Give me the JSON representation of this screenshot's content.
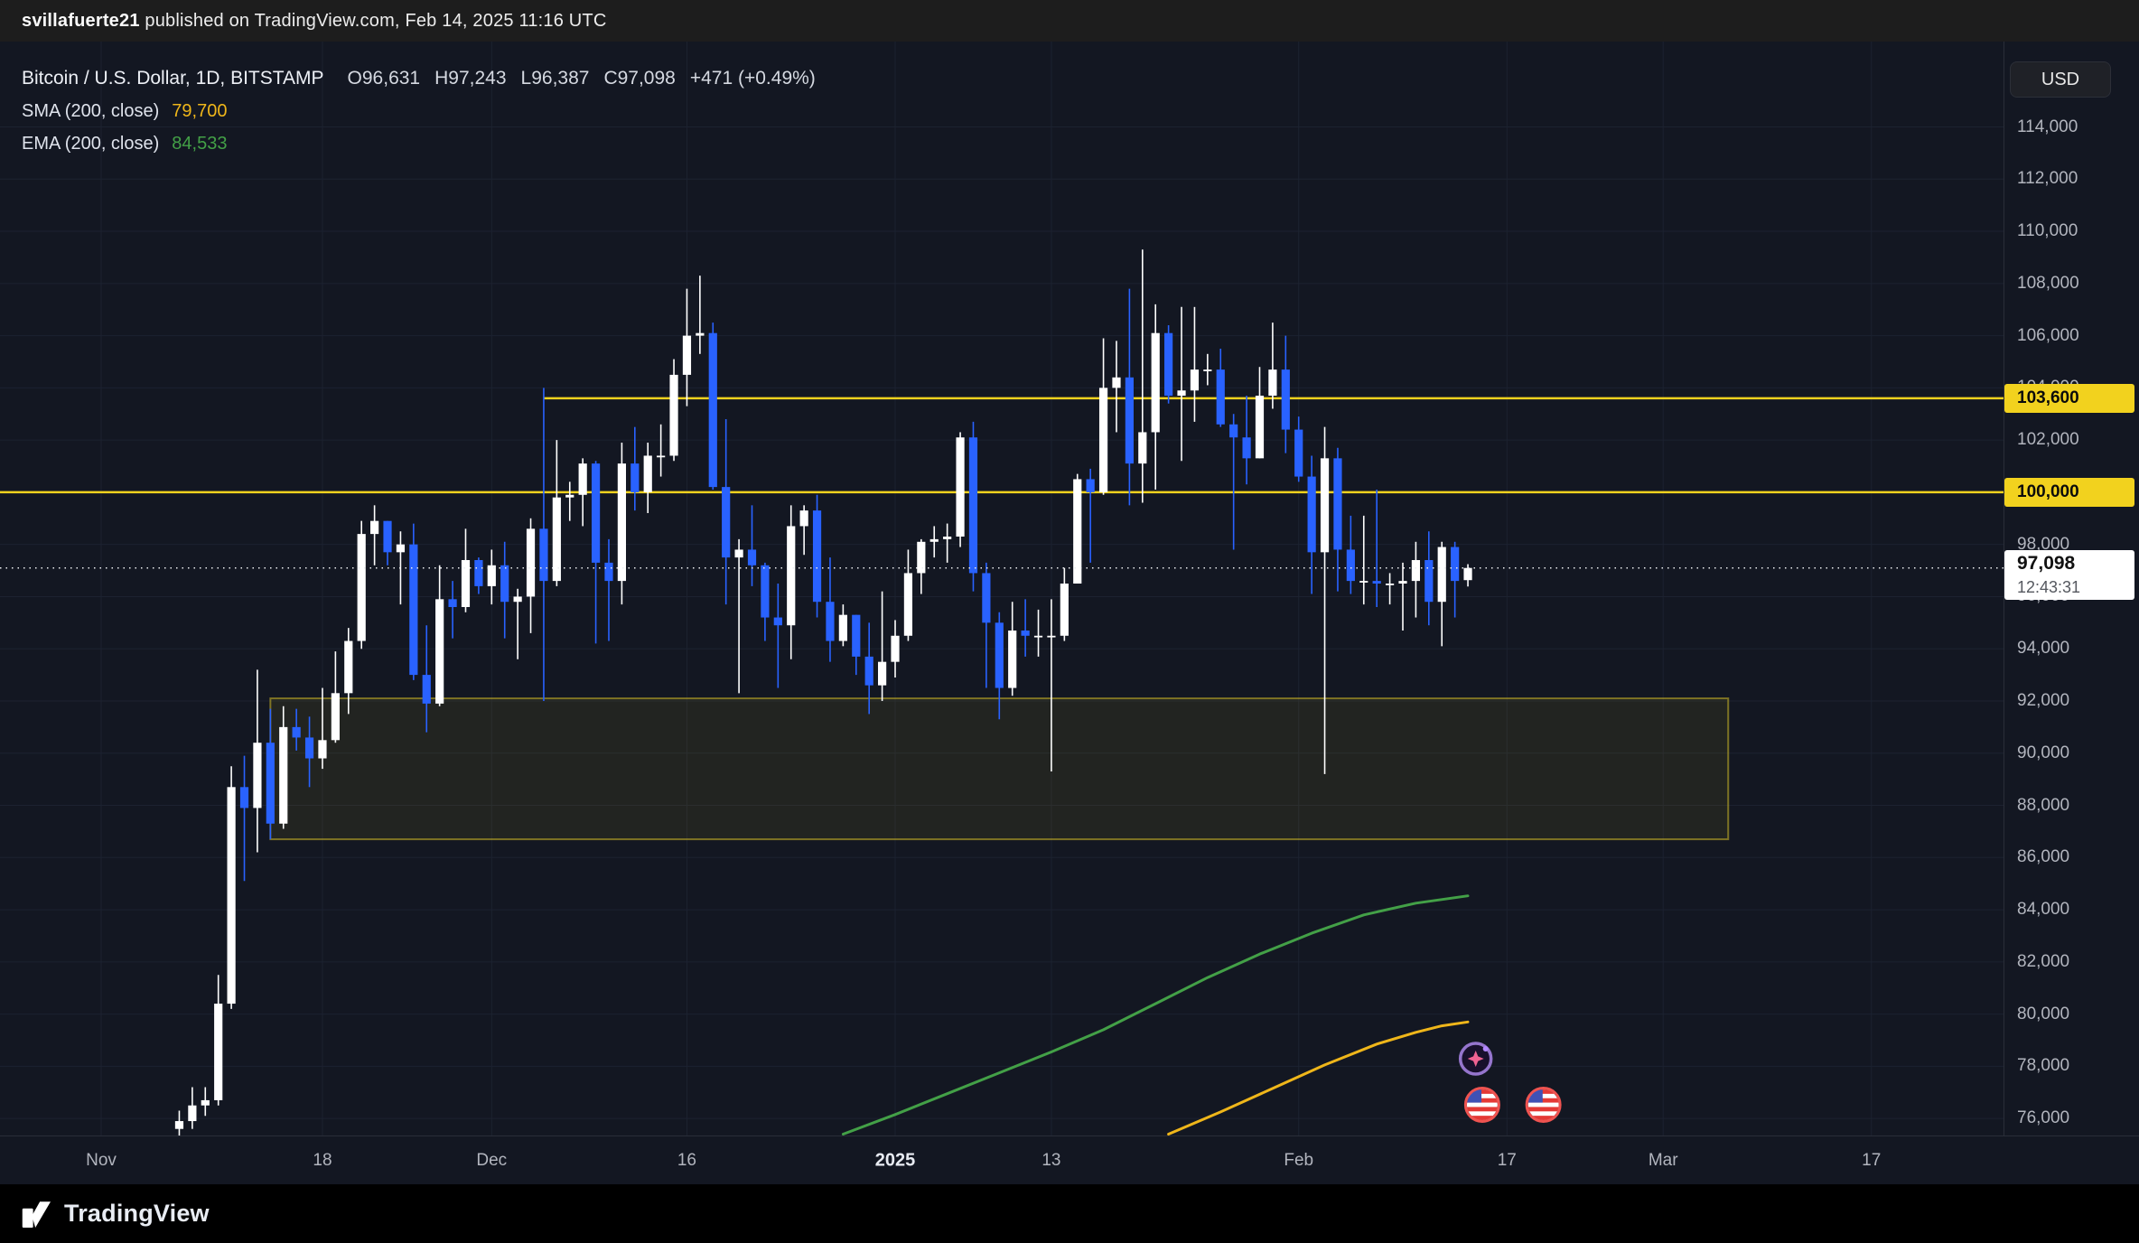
{
  "topbar": {
    "user": "svillafuerte21",
    "rest": " published on TradingView.com, Feb 14, 2025 11:16 UTC"
  },
  "legend": {
    "title": "Bitcoin / U.S. Dollar, 1D, BITSTAMP",
    "o": "O96,631",
    "h": "H97,243",
    "l": "L96,387",
    "c": "C97,098",
    "change": "+471 (+0.49%)",
    "sma": {
      "label": "SMA (200, close)",
      "value": "79,700"
    },
    "ema": {
      "label": "EMA (200, close)",
      "value": "84,533"
    }
  },
  "price_axis": {
    "currency": "USD"
  },
  "footer": {
    "brand": "TradingView"
  },
  "chart_data": {
    "type": "candlestick",
    "title": "Bitcoin / U.S. Dollar, 1D, BITSTAMP",
    "exchange": "BITSTAMP",
    "timeframe": "1D",
    "x_axis_day0": "2024-11-01",
    "ylim": [
      75340,
      117270
    ],
    "last": {
      "open": 96631,
      "high": 97243,
      "low": 96387,
      "close": 97098,
      "change": 471,
      "change_pct": 0.49
    },
    "y_ticks": [
      76000,
      78000,
      80000,
      82000,
      84000,
      86000,
      88000,
      90000,
      92000,
      94000,
      96000,
      98000,
      100000,
      102000,
      104000,
      106000,
      108000,
      110000,
      112000,
      114000
    ],
    "x_ticks": [
      {
        "day": 0,
        "label": "Nov"
      },
      {
        "day": 17,
        "label": "18"
      },
      {
        "day": 30,
        "label": "Dec"
      },
      {
        "day": 45,
        "label": "16"
      },
      {
        "day": 61,
        "label": "2025",
        "bold": true
      },
      {
        "day": 73,
        "label": "13"
      },
      {
        "day": 92,
        "label": "Feb"
      },
      {
        "day": 108,
        "label": "17"
      },
      {
        "day": 120,
        "label": "Mar"
      },
      {
        "day": 136,
        "label": "17"
      }
    ],
    "candles": [
      [
        6,
        75600,
        76300,
        74600,
        75900
      ],
      [
        7,
        75900,
        77200,
        75600,
        76500
      ],
      [
        8,
        76500,
        77200,
        76100,
        76700
      ],
      [
        9,
        76700,
        81500,
        76500,
        80400
      ],
      [
        10,
        80400,
        89500,
        80200,
        88700
      ],
      [
        11,
        88700,
        89900,
        85100,
        87900
      ],
      [
        12,
        87900,
        93200,
        86200,
        90400
      ],
      [
        13,
        90400,
        91700,
        86700,
        87300
      ],
      [
        14,
        87300,
        91800,
        87100,
        91000
      ],
      [
        15,
        91000,
        91700,
        90100,
        90600
      ],
      [
        16,
        90600,
        91400,
        88700,
        89800
      ],
      [
        17,
        89800,
        92500,
        89400,
        90500
      ],
      [
        18,
        90500,
        93900,
        90400,
        92300
      ],
      [
        19,
        92300,
        94800,
        91500,
        94300
      ],
      [
        20,
        94300,
        98900,
        94000,
        98400
      ],
      [
        21,
        98400,
        99500,
        97200,
        98900
      ],
      [
        22,
        98900,
        98900,
        97200,
        97700
      ],
      [
        23,
        97700,
        98500,
        95700,
        98000
      ],
      [
        24,
        98000,
        98800,
        92800,
        93000
      ],
      [
        25,
        93000,
        94900,
        90800,
        91900
      ],
      [
        26,
        91900,
        97200,
        91800,
        95900
      ],
      [
        27,
        95900,
        96600,
        94400,
        95600
      ],
      [
        28,
        95600,
        98600,
        95400,
        97400
      ],
      [
        29,
        97400,
        97500,
        96100,
        96400
      ],
      [
        30,
        96400,
        97800,
        95700,
        97200
      ],
      [
        31,
        97200,
        98100,
        94400,
        95800
      ],
      [
        32,
        95800,
        96300,
        93600,
        96000
      ],
      [
        33,
        96000,
        99000,
        94600,
        98600
      ],
      [
        34,
        98600,
        104000,
        92000,
        96600
      ],
      [
        35,
        96600,
        102000,
        96400,
        99800
      ],
      [
        36,
        99800,
        100400,
        98900,
        99900
      ],
      [
        37,
        99900,
        101300,
        98700,
        101100
      ],
      [
        38,
        101100,
        101200,
        94200,
        97300
      ],
      [
        39,
        97300,
        98200,
        94300,
        96600
      ],
      [
        40,
        96600,
        101900,
        95700,
        101100
      ],
      [
        41,
        101100,
        102500,
        99300,
        100000
      ],
      [
        42,
        100000,
        101900,
        99200,
        101400
      ],
      [
        43,
        101400,
        102600,
        100600,
        101400
      ],
      [
        44,
        101400,
        105100,
        101200,
        104500
      ],
      [
        45,
        104500,
        107800,
        103300,
        106000
      ],
      [
        46,
        106000,
        108300,
        105300,
        106100
      ],
      [
        47,
        106100,
        106500,
        100100,
        100200
      ],
      [
        48,
        100200,
        102800,
        95700,
        97500
      ],
      [
        49,
        97500,
        98200,
        92300,
        97800
      ],
      [
        50,
        97800,
        99500,
        96400,
        97200
      ],
      [
        51,
        97200,
        97300,
        94300,
        95200
      ],
      [
        52,
        95200,
        96500,
        92500,
        94900
      ],
      [
        53,
        94900,
        99500,
        93600,
        98700
      ],
      [
        54,
        98700,
        99500,
        97600,
        99300
      ],
      [
        55,
        99300,
        99900,
        95200,
        95800
      ],
      [
        56,
        95800,
        97500,
        93500,
        94300
      ],
      [
        57,
        94300,
        95700,
        94100,
        95300
      ],
      [
        58,
        95300,
        95300,
        93000,
        93700
      ],
      [
        59,
        93700,
        95000,
        91500,
        92600
      ],
      [
        60,
        92600,
        96200,
        92000,
        93500
      ],
      [
        61,
        93500,
        95100,
        92900,
        94500
      ],
      [
        62,
        94500,
        97800,
        94300,
        96900
      ],
      [
        63,
        96900,
        98200,
        96100,
        98100
      ],
      [
        64,
        98100,
        98700,
        97500,
        98200
      ],
      [
        65,
        98200,
        98800,
        97300,
        98300
      ],
      [
        66,
        98300,
        102300,
        97900,
        102100
      ],
      [
        67,
        102100,
        102700,
        96200,
        96900
      ],
      [
        68,
        96900,
        97300,
        92500,
        95000
      ],
      [
        69,
        95000,
        95400,
        91300,
        92500
      ],
      [
        70,
        92500,
        95800,
        92200,
        94700
      ],
      [
        71,
        94700,
        95900,
        93700,
        94500
      ],
      [
        72,
        94500,
        95500,
        93700,
        94500
      ],
      [
        73,
        94500,
        95900,
        89300,
        94500
      ],
      [
        74,
        94500,
        97100,
        94300,
        96500
      ],
      [
        75,
        96500,
        100700,
        96500,
        100500
      ],
      [
        76,
        100500,
        100900,
        97300,
        100000
      ],
      [
        77,
        100000,
        105900,
        99900,
        104000
      ],
      [
        78,
        104000,
        105800,
        102300,
        104400
      ],
      [
        79,
        104400,
        107800,
        99500,
        101100
      ],
      [
        80,
        101100,
        109300,
        99600,
        102300
      ],
      [
        81,
        102300,
        107200,
        100100,
        106100
      ],
      [
        82,
        106100,
        106400,
        103400,
        103700
      ],
      [
        83,
        103700,
        107100,
        101200,
        103900
      ],
      [
        84,
        103900,
        107100,
        102700,
        104700
      ],
      [
        85,
        104700,
        105300,
        104100,
        104700
      ],
      [
        86,
        104700,
        105500,
        102500,
        102600
      ],
      [
        87,
        102600,
        103000,
        97800,
        102100
      ],
      [
        88,
        102100,
        103700,
        100300,
        101300
      ],
      [
        89,
        101300,
        104800,
        101300,
        103700
      ],
      [
        90,
        103700,
        106500,
        103200,
        104700
      ],
      [
        91,
        104700,
        106000,
        101500,
        102400
      ],
      [
        92,
        102400,
        102900,
        100400,
        100600
      ],
      [
        93,
        100600,
        101400,
        96100,
        97700
      ],
      [
        94,
        97700,
        102500,
        89200,
        101300
      ],
      [
        95,
        101300,
        101700,
        96200,
        97800
      ],
      [
        96,
        97800,
        99100,
        96100,
        96600
      ],
      [
        97,
        96600,
        99100,
        95700,
        96600
      ],
      [
        98,
        96600,
        100100,
        95600,
        96500
      ],
      [
        99,
        96500,
        96900,
        95700,
        96500
      ],
      [
        100,
        96500,
        97300,
        94700,
        96600
      ],
      [
        101,
        96600,
        98100,
        95200,
        97400
      ],
      [
        102,
        97400,
        98500,
        94900,
        95800
      ],
      [
        103,
        95800,
        98100,
        94100,
        97900
      ],
      [
        104,
        97900,
        98100,
        95200,
        96600
      ],
      [
        105,
        96631,
        97243,
        96387,
        97098
      ]
    ],
    "ema200": {
      "name": "EMA (200, close)",
      "period": 200,
      "last": 84533,
      "color": "#43a047",
      "points": [
        [
          57,
          75400
        ],
        [
          61,
          76150
        ],
        [
          65,
          76950
        ],
        [
          69,
          77750
        ],
        [
          73,
          78550
        ],
        [
          77,
          79400
        ],
        [
          81,
          80400
        ],
        [
          85,
          81400
        ],
        [
          89,
          82300
        ],
        [
          93,
          83100
        ],
        [
          97,
          83800
        ],
        [
          101,
          84250
        ],
        [
          105,
          84533
        ]
      ]
    },
    "sma200": {
      "name": "SMA (200, close)",
      "period": 200,
      "last": 79700,
      "color": "#efb61a",
      "points": [
        [
          82,
          75400
        ],
        [
          86,
          76250
        ],
        [
          90,
          77150
        ],
        [
          94,
          78050
        ],
        [
          98,
          78850
        ],
        [
          101,
          79300
        ],
        [
          103,
          79550
        ],
        [
          105,
          79700
        ]
      ]
    },
    "hlines": [
      {
        "price": 103600,
        "label": "103,600",
        "start_day": 34
      },
      {
        "price": 100000,
        "label": "100,000",
        "start_day": -20
      }
    ],
    "price_line": {
      "price": 97098,
      "label": "97,098",
      "countdown": "12:43:31"
    },
    "box": {
      "day_start": 13,
      "day_end": 125,
      "top": 92100,
      "bottom": 86700
    },
    "event_markers": [
      {
        "icon": "us-flag",
        "day": 106.1
      },
      {
        "icon": "us-flag",
        "day": 110.8
      }
    ],
    "sparkle_marker": {
      "icon": "magic-sparkle",
      "day": 105.6
    },
    "colors": {
      "background": "#131722",
      "grid": "#1c2230",
      "up": "#ffffff",
      "down": "#2962ff",
      "hline": "#f2d21e",
      "box_fill": "rgba(242,210,30,0.07)",
      "box_stroke": "rgba(210,185,40,0.55)",
      "price_line": "#eaecef",
      "sma": "#efb61a",
      "ema": "#43a047",
      "axis_text": "#b2b5be"
    }
  }
}
